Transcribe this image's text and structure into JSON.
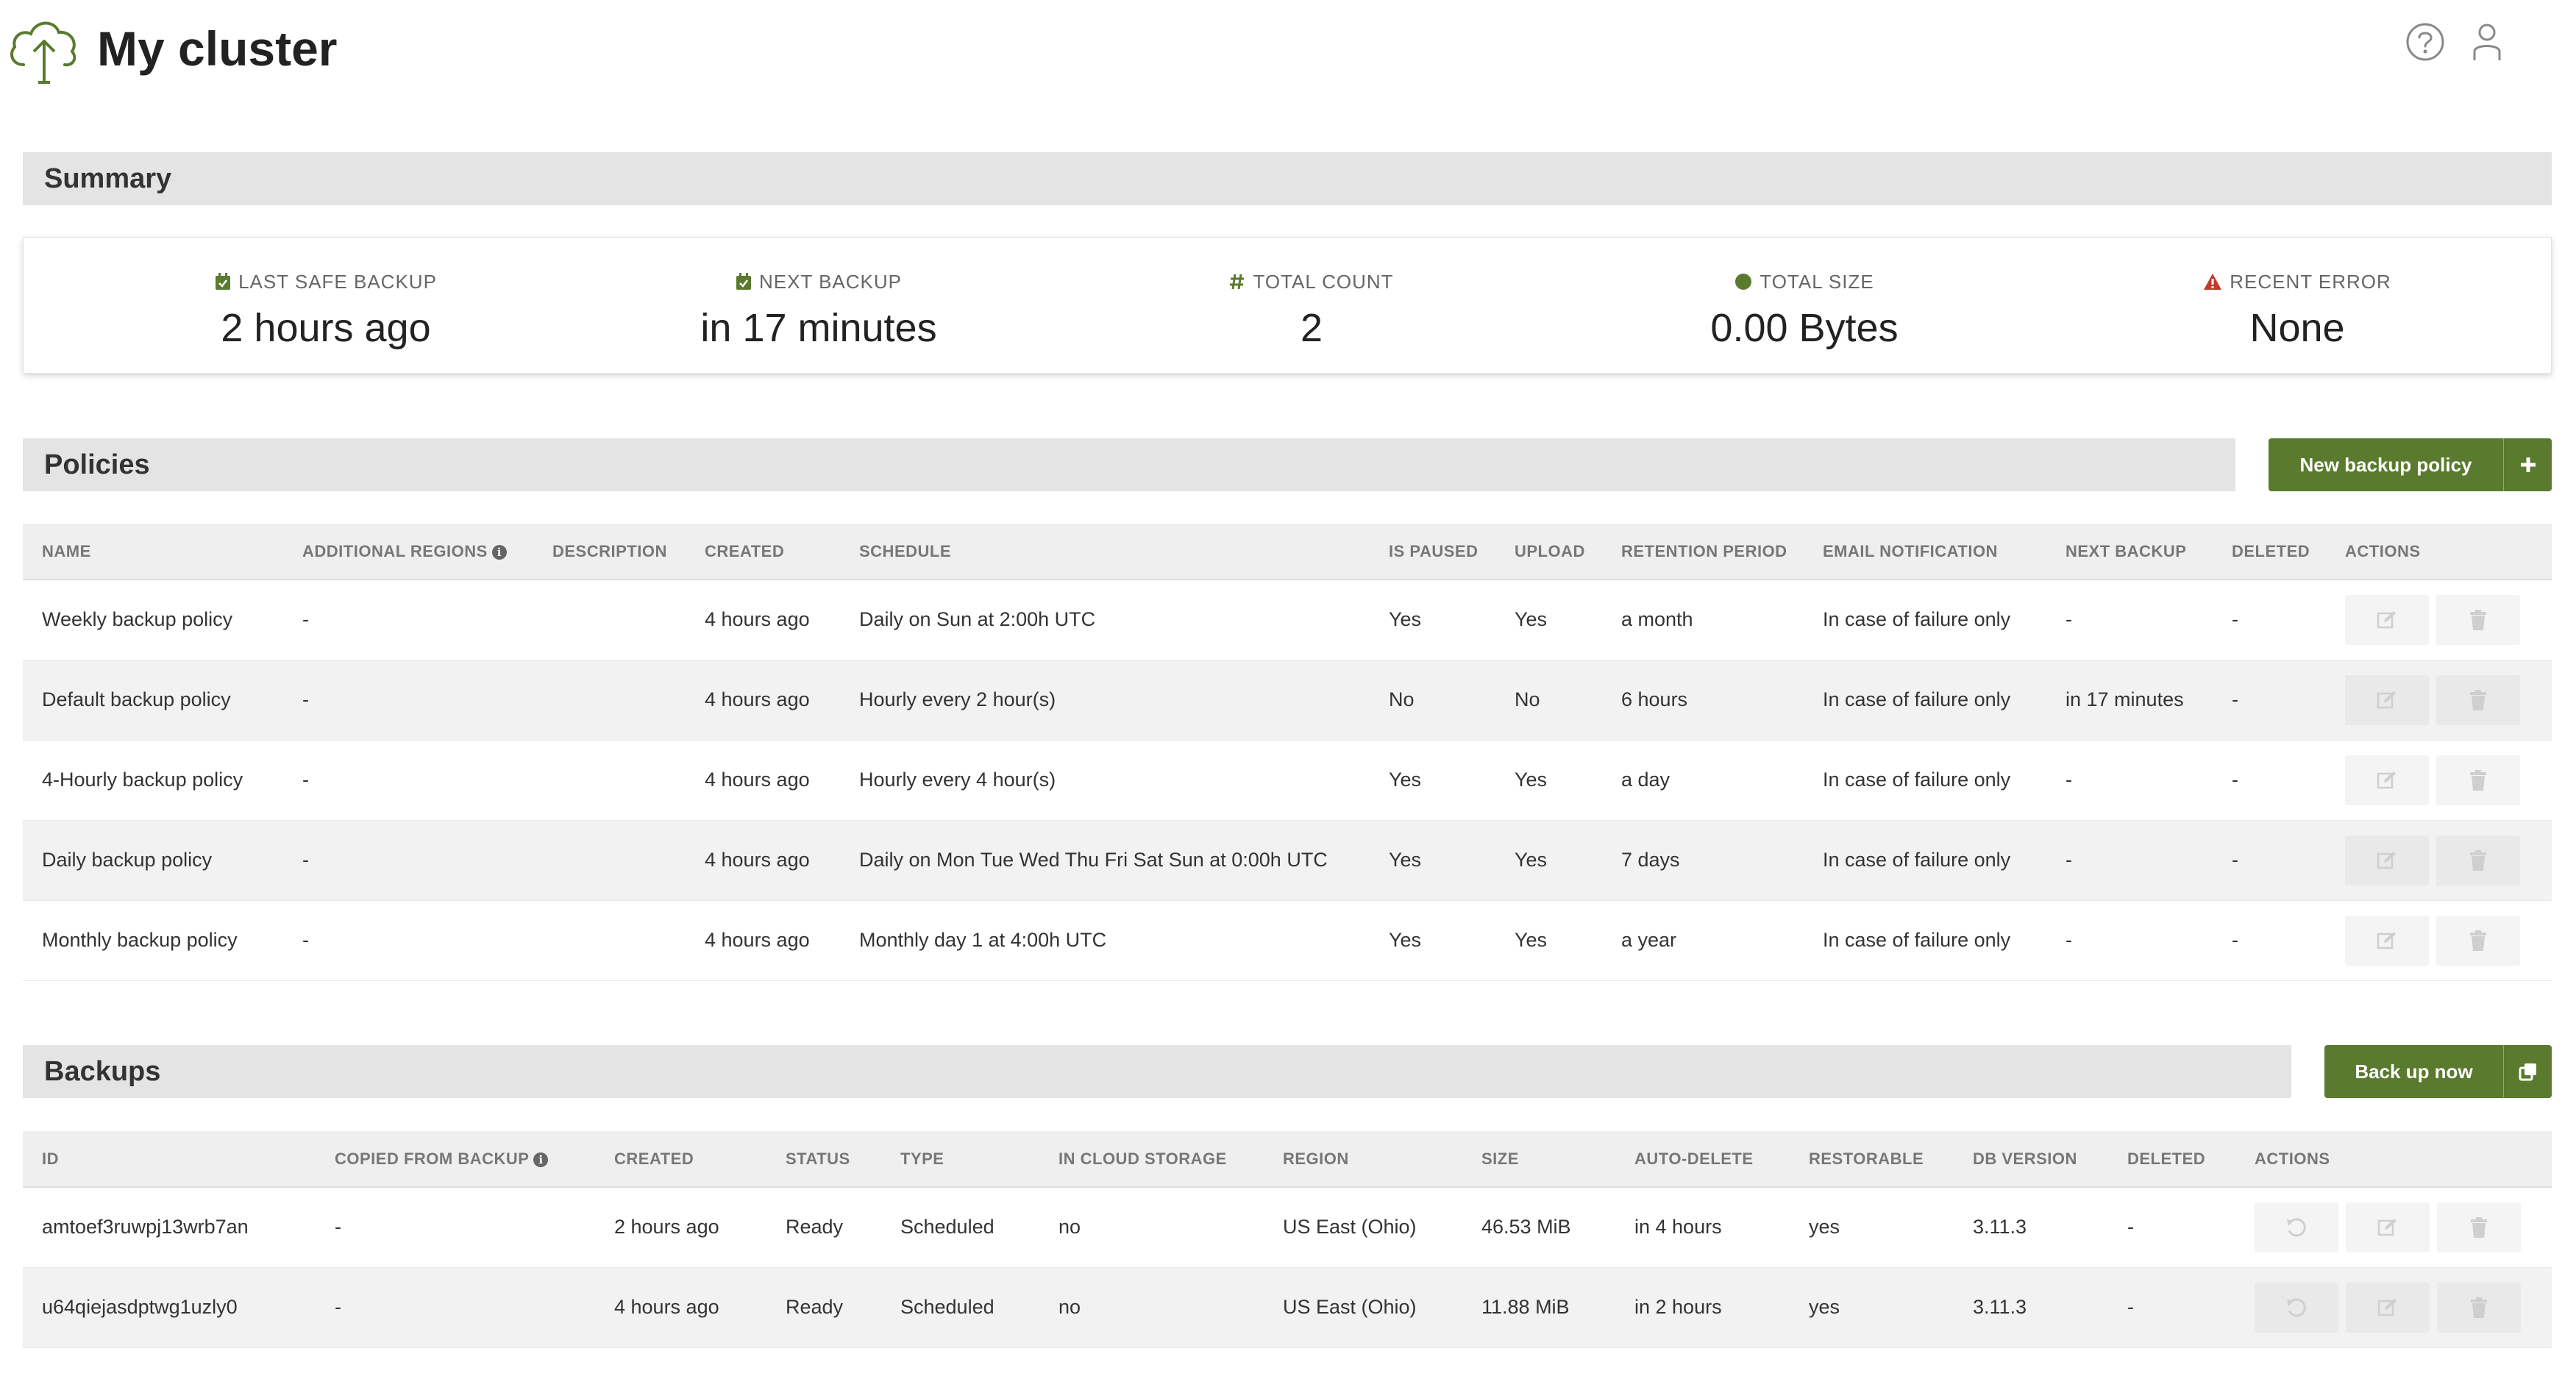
{
  "header": {
    "title": "My cluster"
  },
  "summary": {
    "title": "Summary",
    "stats": [
      {
        "label": "LAST SAFE BACKUP",
        "value": "2 hours ago"
      },
      {
        "label": "NEXT BACKUP",
        "value": "in 17 minutes"
      },
      {
        "label": "TOTAL COUNT",
        "value": "2"
      },
      {
        "label": "TOTAL SIZE",
        "value": "0.00 Bytes"
      },
      {
        "label": "RECENT ERROR",
        "value": "None"
      }
    ]
  },
  "colors": {
    "accent": "#5a7a2e",
    "error": "#c0392b"
  },
  "policies": {
    "title": "Policies",
    "new_button": "New backup policy",
    "columns": [
      "NAME",
      "ADDITIONAL REGIONS",
      "DESCRIPTION",
      "CREATED",
      "SCHEDULE",
      "IS PAUSED",
      "UPLOAD",
      "RETENTION PERIOD",
      "EMAIL NOTIFICATION",
      "NEXT BACKUP",
      "DELETED",
      "ACTIONS"
    ],
    "rows": [
      [
        "Weekly backup policy",
        "-",
        "",
        "4 hours ago",
        "Daily on Sun at 2:00h UTC",
        "Yes",
        "Yes",
        "a month",
        "In case of failure only",
        "-",
        "-"
      ],
      [
        "Default backup policy",
        "-",
        "",
        "4 hours ago",
        "Hourly every 2 hour(s)",
        "No",
        "No",
        "6 hours",
        "In case of failure only",
        "in 17 minutes",
        "-"
      ],
      [
        "4-Hourly backup policy",
        "-",
        "",
        "4 hours ago",
        "Hourly every 4 hour(s)",
        "Yes",
        "Yes",
        "a day",
        "In case of failure only",
        "-",
        "-"
      ],
      [
        "Daily backup policy",
        "-",
        "",
        "4 hours ago",
        "Daily on Mon Tue Wed Thu Fri Sat Sun at 0:00h UTC",
        "Yes",
        "Yes",
        "7 days",
        "In case of failure only",
        "-",
        "-"
      ],
      [
        "Monthly backup policy",
        "-",
        "",
        "4 hours ago",
        "Monthly day 1 at 4:00h UTC",
        "Yes",
        "Yes",
        "a year",
        "In case of failure only",
        "-",
        "-"
      ]
    ]
  },
  "backups": {
    "title": "Backups",
    "backup_button": "Back up now",
    "columns": [
      "ID",
      "COPIED FROM BACKUP",
      "CREATED",
      "STATUS",
      "TYPE",
      "IN CLOUD STORAGE",
      "REGION",
      "SIZE",
      "AUTO-DELETE",
      "RESTORABLE",
      "DB VERSION",
      "DELETED",
      "ACTIONS"
    ],
    "rows": [
      [
        "amtoef3ruwpj13wrb7an",
        "-",
        "2 hours ago",
        "Ready",
        "Scheduled",
        "no",
        "US East (Ohio)",
        "46.53 MiB",
        "in 4 hours",
        "yes",
        "3.11.3",
        "-"
      ],
      [
        "u64qiejasdptwg1uzly0",
        "-",
        "4 hours ago",
        "Ready",
        "Scheduled",
        "no",
        "US East (Ohio)",
        "11.88 MiB",
        "in 2 hours",
        "yes",
        "3.11.3",
        "-"
      ]
    ]
  }
}
